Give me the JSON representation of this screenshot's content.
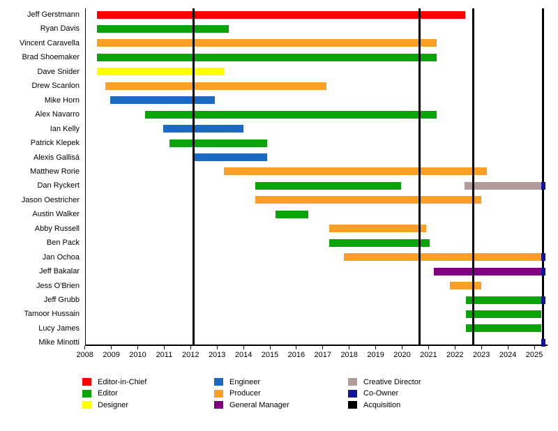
{
  "chart_data": {
    "type": "gantt",
    "xlabel": "",
    "ylabel": "",
    "x_axis": {
      "min": 2008,
      "max": 2025.5,
      "ticks": [
        2008,
        2009,
        2010,
        2011,
        2012,
        2013,
        2014,
        2015,
        2016,
        2017,
        2018,
        2019,
        2020,
        2021,
        2022,
        2023,
        2024,
        2025
      ]
    },
    "legend": [
      {
        "label": "Editor-in-Chief",
        "color": "#fe0000"
      },
      {
        "label": "Editor",
        "color": "#0aa30a"
      },
      {
        "label": "Designer",
        "color": "#ffff00"
      },
      {
        "label": "Engineer",
        "color": "#1a6ac4"
      },
      {
        "label": "Producer",
        "color": "#fba026"
      },
      {
        "label": "General Manager",
        "color": "#800080"
      },
      {
        "label": "Creative Director",
        "color": "#b29c9c"
      },
      {
        "label": "Co-Owner",
        "color": "#12129b"
      },
      {
        "label": "Acquisition",
        "color": "#000000"
      }
    ],
    "legend_position": "bottom",
    "grid": false,
    "people": [
      {
        "name": "Jeff Gerstmann",
        "segments": [
          {
            "role": "Editor-in-Chief",
            "start": 2008.45,
            "end": 2022.4
          }
        ]
      },
      {
        "name": "Ryan Davis",
        "segments": [
          {
            "role": "Editor",
            "start": 2008.45,
            "end": 2013.45
          }
        ]
      },
      {
        "name": "Vincent Caravella",
        "segments": [
          {
            "role": "Producer",
            "start": 2008.45,
            "end": 2021.3
          }
        ]
      },
      {
        "name": "Brad Shoemaker",
        "segments": [
          {
            "role": "Editor",
            "start": 2008.45,
            "end": 2021.3
          }
        ]
      },
      {
        "name": "Dave Snider",
        "segments": [
          {
            "role": "Designer",
            "start": 2008.45,
            "end": 2013.25
          }
        ]
      },
      {
        "name": "Drew Scanlon",
        "segments": [
          {
            "role": "Producer",
            "start": 2008.78,
            "end": 2017.15
          }
        ]
      },
      {
        "name": "Mike Horn",
        "segments": [
          {
            "role": "Engineer",
            "start": 2008.95,
            "end": 2012.92
          }
        ]
      },
      {
        "name": "Alex Navarro",
        "segments": [
          {
            "role": "Editor",
            "start": 2010.28,
            "end": 2021.3
          }
        ]
      },
      {
        "name": "Ian Kelly",
        "segments": [
          {
            "role": "Engineer",
            "start": 2010.95,
            "end": 2014.0
          }
        ]
      },
      {
        "name": "Patrick Klepek",
        "segments": [
          {
            "role": "Editor",
            "start": 2011.2,
            "end": 2014.9
          }
        ]
      },
      {
        "name": "Alexis Gallisá",
        "segments": [
          {
            "role": "Engineer",
            "start": 2012.1,
            "end": 2014.9
          }
        ]
      },
      {
        "name": "Matthew Rorie",
        "segments": [
          {
            "role": "Producer",
            "start": 2013.25,
            "end": 2023.2
          }
        ]
      },
      {
        "name": "Dan Ryckert",
        "segments": [
          {
            "role": "Editor",
            "start": 2014.45,
            "end": 2019.95
          },
          {
            "role": "Creative Director",
            "start": 2022.37,
            "end": 2025.27
          },
          {
            "role": "Co-Owner",
            "start": 2025.27,
            "end": 2025.43
          }
        ]
      },
      {
        "name": "Jason Oestricher",
        "segments": [
          {
            "role": "Producer",
            "start": 2014.45,
            "end": 2023.0
          }
        ]
      },
      {
        "name": "Austin Walker",
        "segments": [
          {
            "role": "Editor",
            "start": 2015.2,
            "end": 2016.45
          }
        ]
      },
      {
        "name": "Abby Russell",
        "segments": [
          {
            "role": "Producer",
            "start": 2017.25,
            "end": 2020.9
          }
        ]
      },
      {
        "name": "Ben Pack",
        "segments": [
          {
            "role": "Editor",
            "start": 2017.25,
            "end": 2021.05
          }
        ]
      },
      {
        "name": "Jan Ochoa",
        "segments": [
          {
            "role": "Producer",
            "start": 2017.8,
            "end": 2025.27
          },
          {
            "role": "Co-Owner",
            "start": 2025.27,
            "end": 2025.43
          }
        ]
      },
      {
        "name": "Jeff Bakalar",
        "segments": [
          {
            "role": "General Manager",
            "start": 2021.2,
            "end": 2025.27
          },
          {
            "role": "Co-Owner",
            "start": 2025.27,
            "end": 2025.43
          }
        ]
      },
      {
        "name": "Jess O'Brien",
        "segments": [
          {
            "role": "Producer",
            "start": 2021.8,
            "end": 2023.0
          }
        ]
      },
      {
        "name": "Jeff Grubb",
        "segments": [
          {
            "role": "Editor",
            "start": 2022.4,
            "end": 2025.27
          },
          {
            "role": "Co-Owner",
            "start": 2025.27,
            "end": 2025.43
          }
        ]
      },
      {
        "name": "Tamoor Hussain",
        "segments": [
          {
            "role": "Editor",
            "start": 2022.4,
            "end": 2025.27
          }
        ]
      },
      {
        "name": "Lucy James",
        "segments": [
          {
            "role": "Editor",
            "start": 2022.4,
            "end": 2025.27
          }
        ]
      },
      {
        "name": "Mike Minotti",
        "segments": [
          {
            "role": "Co-Owner",
            "start": 2025.27,
            "end": 2025.43
          }
        ]
      }
    ],
    "acquisition_lines": [
      2012.1,
      2020.65,
      2022.7,
      2025.32
    ]
  }
}
